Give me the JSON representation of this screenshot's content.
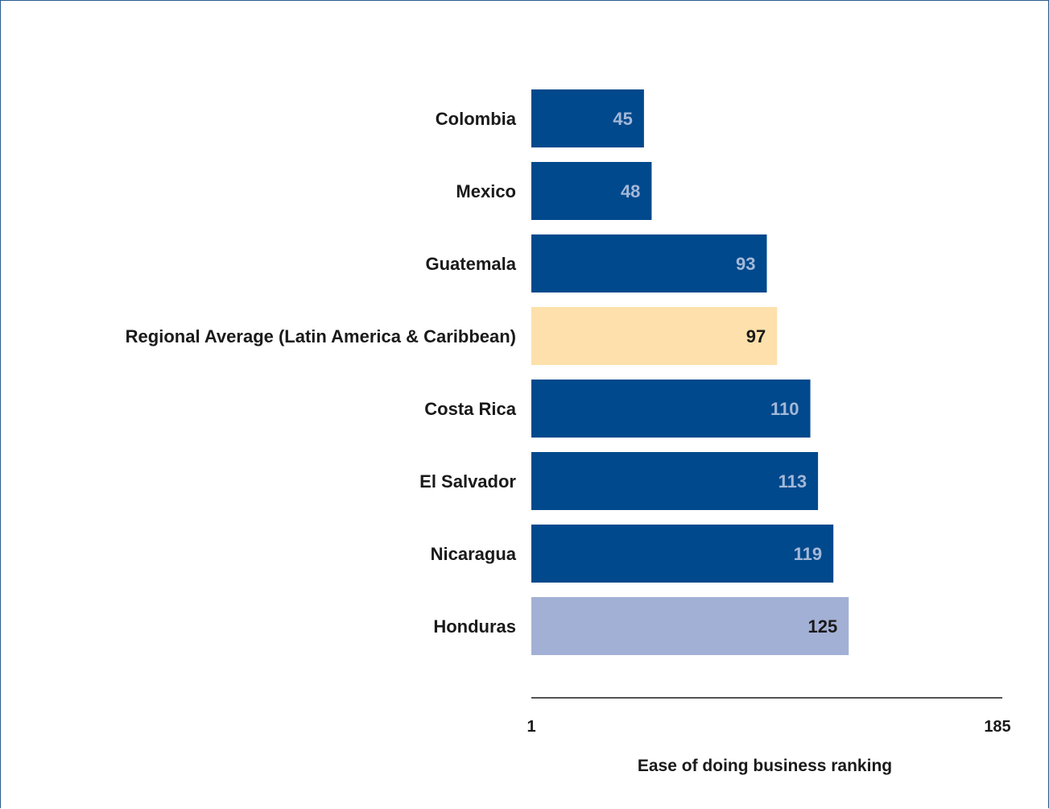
{
  "chart_data": {
    "type": "bar",
    "orientation": "horizontal",
    "categories": [
      "Colombia",
      "Mexico",
      "Guatemala",
      "Regional Average (Latin America & Caribbean)",
      "Costa Rica",
      "El Salvador",
      "Nicaragua",
      "Honduras"
    ],
    "values": [
      45,
      48,
      93,
      97,
      110,
      113,
      119,
      125
    ],
    "bar_colors": [
      "#00498c",
      "#00498c",
      "#00498c",
      "#fde0ab",
      "#00498c",
      "#00498c",
      "#00498c",
      "#a3b0d5"
    ],
    "value_label_colors": [
      "#a3b8d8",
      "#a3b8d8",
      "#a3b8d8",
      "#1a1a1a",
      "#a3b8d8",
      "#a3b8d8",
      "#a3b8d8",
      "#1a1a1a"
    ],
    "xlim": [
      1,
      185
    ],
    "x_ticks": [
      "1",
      "185"
    ],
    "xlabel": "Ease of doing business ranking",
    "ylabel": "",
    "title": "",
    "grid": false
  }
}
